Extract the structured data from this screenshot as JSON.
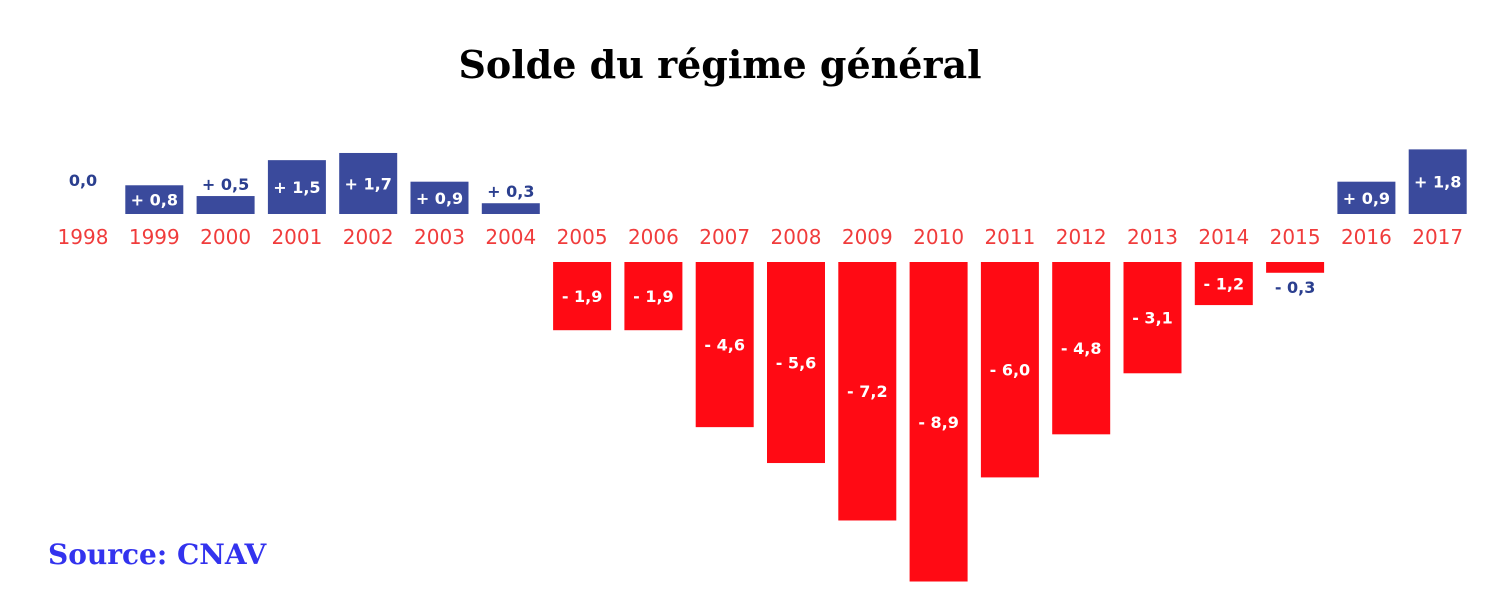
{
  "chart_data": {
    "type": "bar",
    "title": "Solde du régime général",
    "source": "Source: CNAV",
    "xlabel": "",
    "ylabel": "",
    "categories": [
      "1998",
      "1999",
      "2000",
      "2001",
      "2002",
      "2003",
      "2004",
      "2005",
      "2006",
      "2007",
      "2008",
      "2009",
      "2010",
      "2011",
      "2012",
      "2013",
      "2014",
      "2015",
      "2016",
      "2017"
    ],
    "values": [
      0.0,
      0.8,
      0.5,
      1.5,
      1.7,
      0.9,
      0.3,
      -1.9,
      -1.9,
      -4.6,
      -5.6,
      -7.2,
      -8.9,
      -6.0,
      -4.8,
      -3.1,
      -1.2,
      -0.3,
      0.9,
      1.8
    ],
    "value_labels": [
      "0,0",
      "+ 0,8",
      "+ 0,5",
      "+ 1,5",
      "+ 1,7",
      "+ 0,9",
      "+ 0,3",
      "- 1,9",
      "- 1,9",
      "- 4,6",
      "- 5,6",
      "- 7,2",
      "- 8,9",
      "- 6,0",
      "- 4,8",
      "- 3,1",
      "- 1,2",
      "- 0,3",
      "+ 0,9",
      "+ 1,8"
    ],
    "ylim": [
      -8.9,
      1.8
    ],
    "grid": false,
    "legend": "none"
  },
  "colors": {
    "positive": "#3a4a9c",
    "negative": "#ff0a14",
    "year_label": "#f03c3c",
    "source": "#3333ee",
    "label_on_bar": "#ffffff",
    "label_outside": "#2b3f8f"
  }
}
